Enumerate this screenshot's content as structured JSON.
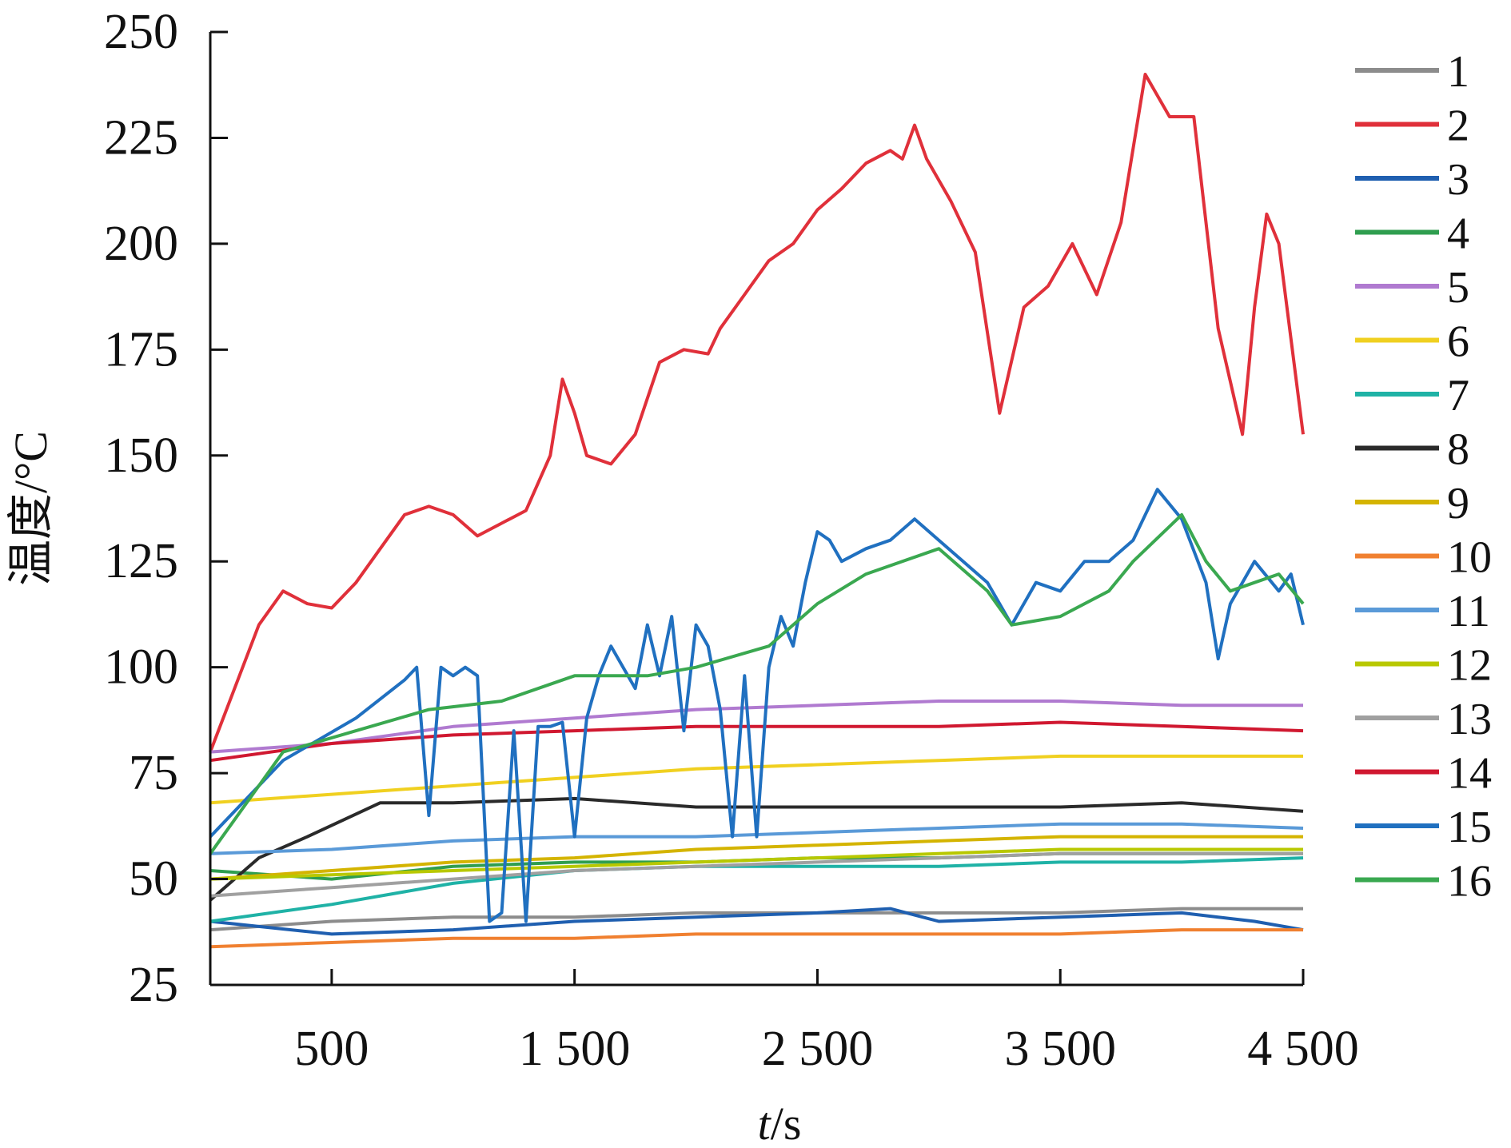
{
  "chart_data": {
    "type": "line",
    "xlabel_italic": "t",
    "xlabel_unit": "/s",
    "ylabel": "温度/°C",
    "xlim": [
      0,
      4500
    ],
    "ylim": [
      25,
      250
    ],
    "x_ticks": [
      500,
      1500,
      2500,
      3500,
      4500
    ],
    "x_tick_labels": [
      "500",
      "1 500",
      "2 500",
      "3 500",
      "4 500"
    ],
    "y_ticks": [
      25,
      50,
      75,
      100,
      125,
      150,
      175,
      200,
      225,
      250
    ],
    "y_tick_labels": [
      "25",
      "50",
      "75",
      "100",
      "125",
      "150",
      "175",
      "200",
      "225",
      "250"
    ],
    "grid": false,
    "legend_position": "right",
    "series": [
      {
        "name": "1",
        "color": "#8c8c8c",
        "points": [
          [
            0,
            38
          ],
          [
            500,
            40
          ],
          [
            1000,
            41
          ],
          [
            1500,
            41
          ],
          [
            2000,
            42
          ],
          [
            2500,
            42
          ],
          [
            3000,
            42
          ],
          [
            3500,
            42
          ],
          [
            4000,
            43
          ],
          [
            4500,
            43
          ]
        ]
      },
      {
        "name": "2",
        "color": "#e0303a",
        "points": [
          [
            0,
            80
          ],
          [
            100,
            95
          ],
          [
            200,
            110
          ],
          [
            300,
            118
          ],
          [
            400,
            115
          ],
          [
            500,
            114
          ],
          [
            600,
            120
          ],
          [
            700,
            128
          ],
          [
            800,
            136
          ],
          [
            900,
            138
          ],
          [
            1000,
            136
          ],
          [
            1100,
            131
          ],
          [
            1200,
            134
          ],
          [
            1300,
            137
          ],
          [
            1400,
            150
          ],
          [
            1450,
            168
          ],
          [
            1500,
            160
          ],
          [
            1550,
            150
          ],
          [
            1650,
            148
          ],
          [
            1750,
            155
          ],
          [
            1850,
            172
          ],
          [
            1950,
            175
          ],
          [
            2050,
            174
          ],
          [
            2100,
            180
          ],
          [
            2200,
            188
          ],
          [
            2300,
            196
          ],
          [
            2400,
            200
          ],
          [
            2500,
            208
          ],
          [
            2600,
            213
          ],
          [
            2700,
            219
          ],
          [
            2800,
            222
          ],
          [
            2850,
            220
          ],
          [
            2900,
            228
          ],
          [
            2950,
            220
          ],
          [
            3050,
            210
          ],
          [
            3150,
            198
          ],
          [
            3250,
            160
          ],
          [
            3350,
            185
          ],
          [
            3450,
            190
          ],
          [
            3550,
            200
          ],
          [
            3650,
            188
          ],
          [
            3750,
            205
          ],
          [
            3850,
            240
          ],
          [
            3950,
            230
          ],
          [
            4050,
            230
          ],
          [
            4150,
            180
          ],
          [
            4250,
            155
          ],
          [
            4300,
            185
          ],
          [
            4350,
            207
          ],
          [
            4400,
            200
          ],
          [
            4500,
            155
          ]
        ]
      },
      {
        "name": "3",
        "color": "#1f5fb0",
        "points": [
          [
            0,
            40
          ],
          [
            500,
            37
          ],
          [
            1000,
            38
          ],
          [
            1500,
            40
          ],
          [
            2000,
            41
          ],
          [
            2500,
            42
          ],
          [
            2800,
            43
          ],
          [
            3000,
            40
          ],
          [
            3500,
            41
          ],
          [
            4000,
            42
          ],
          [
            4300,
            40
          ],
          [
            4500,
            38
          ]
        ]
      },
      {
        "name": "4",
        "color": "#2f9e4f",
        "points": [
          [
            0,
            52
          ],
          [
            500,
            50
          ],
          [
            1000,
            53
          ],
          [
            1500,
            54
          ],
          [
            2000,
            54
          ],
          [
            2500,
            55
          ],
          [
            3000,
            55
          ],
          [
            3500,
            56
          ],
          [
            4000,
            56
          ],
          [
            4500,
            56
          ]
        ]
      },
      {
        "name": "5",
        "color": "#b07ad0",
        "points": [
          [
            0,
            80
          ],
          [
            500,
            82
          ],
          [
            1000,
            86
          ],
          [
            1500,
            88
          ],
          [
            2000,
            90
          ],
          [
            2500,
            91
          ],
          [
            3000,
            92
          ],
          [
            3500,
            92
          ],
          [
            4000,
            91
          ],
          [
            4500,
            91
          ]
        ]
      },
      {
        "name": "6",
        "color": "#f0d020",
        "points": [
          [
            0,
            68
          ],
          [
            500,
            70
          ],
          [
            1000,
            72
          ],
          [
            1500,
            74
          ],
          [
            2000,
            76
          ],
          [
            2500,
            77
          ],
          [
            3000,
            78
          ],
          [
            3500,
            79
          ],
          [
            4000,
            79
          ],
          [
            4500,
            79
          ]
        ]
      },
      {
        "name": "7",
        "color": "#1fb2a6",
        "points": [
          [
            0,
            40
          ],
          [
            500,
            44
          ],
          [
            1000,
            49
          ],
          [
            1500,
            52
          ],
          [
            2000,
            53
          ],
          [
            2500,
            53
          ],
          [
            3000,
            53
          ],
          [
            3500,
            54
          ],
          [
            4000,
            54
          ],
          [
            4500,
            55
          ]
        ]
      },
      {
        "name": "8",
        "color": "#2a2a2a",
        "points": [
          [
            0,
            45
          ],
          [
            200,
            55
          ],
          [
            400,
            60
          ],
          [
            700,
            68
          ],
          [
            1000,
            68
          ],
          [
            1500,
            69
          ],
          [
            2000,
            67
          ],
          [
            2500,
            67
          ],
          [
            3000,
            67
          ],
          [
            3500,
            67
          ],
          [
            4000,
            68
          ],
          [
            4500,
            66
          ]
        ]
      },
      {
        "name": "9",
        "color": "#d4b400",
        "points": [
          [
            0,
            50
          ],
          [
            500,
            52
          ],
          [
            1000,
            54
          ],
          [
            1500,
            55
          ],
          [
            2000,
            57
          ],
          [
            2500,
            58
          ],
          [
            3000,
            59
          ],
          [
            3500,
            60
          ],
          [
            4000,
            60
          ],
          [
            4500,
            60
          ]
        ]
      },
      {
        "name": "10",
        "color": "#f08030",
        "points": [
          [
            0,
            34
          ],
          [
            500,
            35
          ],
          [
            1000,
            36
          ],
          [
            1500,
            36
          ],
          [
            2000,
            37
          ],
          [
            2500,
            37
          ],
          [
            3000,
            37
          ],
          [
            3500,
            37
          ],
          [
            4000,
            38
          ],
          [
            4500,
            38
          ]
        ]
      },
      {
        "name": "11",
        "color": "#5a9ad8",
        "points": [
          [
            0,
            56
          ],
          [
            500,
            57
          ],
          [
            1000,
            59
          ],
          [
            1500,
            60
          ],
          [
            2000,
            60
          ],
          [
            2500,
            61
          ],
          [
            3000,
            62
          ],
          [
            3500,
            63
          ],
          [
            4000,
            63
          ],
          [
            4500,
            62
          ]
        ]
      },
      {
        "name": "12",
        "color": "#b8c800",
        "points": [
          [
            0,
            50
          ],
          [
            500,
            51
          ],
          [
            1000,
            52
          ],
          [
            1500,
            53
          ],
          [
            2000,
            54
          ],
          [
            2500,
            55
          ],
          [
            3000,
            56
          ],
          [
            3500,
            57
          ],
          [
            4000,
            57
          ],
          [
            4500,
            57
          ]
        ]
      },
      {
        "name": "13",
        "color": "#a0a0a0",
        "points": [
          [
            0,
            46
          ],
          [
            500,
            48
          ],
          [
            1000,
            50
          ],
          [
            1500,
            52
          ],
          [
            2000,
            53
          ],
          [
            2500,
            54
          ],
          [
            3000,
            55
          ],
          [
            3500,
            56
          ],
          [
            4000,
            56
          ],
          [
            4500,
            56
          ]
        ]
      },
      {
        "name": "14",
        "color": "#d01830",
        "points": [
          [
            0,
            78
          ],
          [
            500,
            82
          ],
          [
            1000,
            84
          ],
          [
            1500,
            85
          ],
          [
            2000,
            86
          ],
          [
            2500,
            86
          ],
          [
            3000,
            86
          ],
          [
            3500,
            87
          ],
          [
            4000,
            86
          ],
          [
            4500,
            85
          ]
        ]
      },
      {
        "name": "15",
        "color": "#2070c0",
        "points": [
          [
            0,
            60
          ],
          [
            300,
            78
          ],
          [
            600,
            88
          ],
          [
            800,
            97
          ],
          [
            850,
            100
          ],
          [
            900,
            65
          ],
          [
            950,
            100
          ],
          [
            1000,
            98
          ],
          [
            1050,
            100
          ],
          [
            1100,
            98
          ],
          [
            1150,
            40
          ],
          [
            1200,
            42
          ],
          [
            1250,
            85
          ],
          [
            1300,
            40
          ],
          [
            1350,
            86
          ],
          [
            1400,
            86
          ],
          [
            1450,
            87
          ],
          [
            1500,
            60
          ],
          [
            1550,
            88
          ],
          [
            1600,
            98
          ],
          [
            1650,
            105
          ],
          [
            1700,
            100
          ],
          [
            1750,
            95
          ],
          [
            1800,
            110
          ],
          [
            1850,
            98
          ],
          [
            1900,
            112
          ],
          [
            1950,
            85
          ],
          [
            2000,
            110
          ],
          [
            2050,
            105
          ],
          [
            2100,
            90
          ],
          [
            2150,
            60
          ],
          [
            2200,
            98
          ],
          [
            2250,
            60
          ],
          [
            2300,
            100
          ],
          [
            2350,
            112
          ],
          [
            2400,
            105
          ],
          [
            2450,
            120
          ],
          [
            2500,
            132
          ],
          [
            2550,
            130
          ],
          [
            2600,
            125
          ],
          [
            2700,
            128
          ],
          [
            2800,
            130
          ],
          [
            2900,
            135
          ],
          [
            3000,
            130
          ],
          [
            3100,
            125
          ],
          [
            3200,
            120
          ],
          [
            3300,
            110
          ],
          [
            3400,
            120
          ],
          [
            3500,
            118
          ],
          [
            3600,
            125
          ],
          [
            3700,
            125
          ],
          [
            3800,
            130
          ],
          [
            3900,
            142
          ],
          [
            4000,
            135
          ],
          [
            4100,
            120
          ],
          [
            4150,
            102
          ],
          [
            4200,
            115
          ],
          [
            4300,
            125
          ],
          [
            4400,
            118
          ],
          [
            4450,
            122
          ],
          [
            4500,
            110
          ]
        ]
      },
      {
        "name": "16",
        "color": "#3aa850",
        "points": [
          [
            0,
            56
          ],
          [
            300,
            80
          ],
          [
            600,
            85
          ],
          [
            900,
            90
          ],
          [
            1200,
            92
          ],
          [
            1500,
            98
          ],
          [
            1800,
            98
          ],
          [
            2000,
            100
          ],
          [
            2300,
            105
          ],
          [
            2500,
            115
          ],
          [
            2700,
            122
          ],
          [
            3000,
            128
          ],
          [
            3200,
            118
          ],
          [
            3300,
            110
          ],
          [
            3500,
            112
          ],
          [
            3700,
            118
          ],
          [
            3800,
            125
          ],
          [
            4000,
            136
          ],
          [
            4100,
            125
          ],
          [
            4200,
            118
          ],
          [
            4300,
            120
          ],
          [
            4400,
            122
          ],
          [
            4500,
            115
          ]
        ]
      }
    ]
  }
}
